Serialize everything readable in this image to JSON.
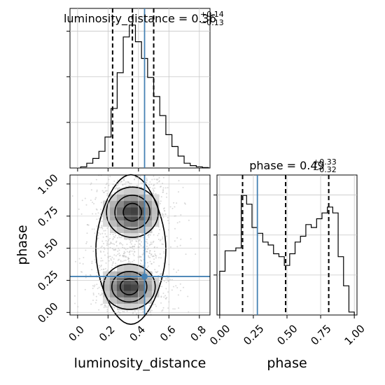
{
  "chart_data": {
    "type": "corner",
    "parameters": [
      "luminosity_distance",
      "phase"
    ],
    "truth": {
      "luminosity_distance": 0.44,
      "phase": 0.28
    },
    "grid": true,
    "panels": [
      {
        "id": "hist-luminosity_distance",
        "type": "histogram",
        "parameter": "luminosity_distance",
        "title_prefix": "luminosity_distance = 0.36",
        "title_plus": "+0.14",
        "title_minus": "−0.13",
        "bins": [
          0.02,
          0.06,
          0.1,
          0.14,
          0.18,
          0.22,
          0.26,
          0.3,
          0.34,
          0.38,
          0.42,
          0.46,
          0.5,
          0.54,
          0.58,
          0.62,
          0.66,
          0.7,
          0.74,
          0.78,
          0.82
        ],
        "counts": [
          0.5,
          2,
          4,
          7,
          13,
          25,
          40,
          55,
          60,
          53,
          46,
          38,
          30,
          22,
          14,
          9,
          5,
          2,
          1,
          0.5,
          0.2
        ],
        "quantiles": [
          0.23,
          0.36,
          0.5
        ],
        "xlim": [
          -0.05,
          0.87
        ],
        "ylim": [
          0,
          67
        ],
        "xticks": [
          0.0,
          0.2,
          0.4,
          0.6,
          0.8
        ]
      },
      {
        "id": "hist-phase",
        "type": "histogram",
        "parameter": "phase",
        "title_prefix": "phase = 0.49",
        "title_plus": "+0.33",
        "title_minus": "−0.32",
        "bins": [
          0.0,
          0.04,
          0.08,
          0.12,
          0.16,
          0.2,
          0.24,
          0.28,
          0.32,
          0.36,
          0.4,
          0.44,
          0.48,
          0.52,
          0.56,
          0.6,
          0.64,
          0.68,
          0.72,
          0.76,
          0.8,
          0.84,
          0.88,
          0.92,
          0.96
        ],
        "counts": [
          15,
          22,
          22,
          23,
          41,
          38,
          30,
          28,
          25,
          24,
          21,
          20,
          17,
          21,
          25,
          27,
          31,
          30,
          33,
          35,
          37,
          35,
          20,
          10,
          1
        ],
        "quantiles": [
          0.17,
          0.49,
          0.81
        ],
        "xlim": [
          -0.02,
          1.02
        ],
        "ylim": [
          0,
          48
        ],
        "xticks": [
          0.0,
          0.25,
          0.5,
          0.75,
          1.0
        ],
        "xtick_labels": [
          "0.00",
          "0.25",
          "0.50",
          "0.75",
          "1.00"
        ]
      },
      {
        "id": "scatter-phase-vs-luminosity_distance",
        "type": "2d-density",
        "x_parameter": "luminosity_distance",
        "y_parameter": "phase",
        "xlim": [
          -0.05,
          0.87
        ],
        "ylim": [
          -0.02,
          1.07
        ],
        "xticks": [
          0.0,
          0.2,
          0.4,
          0.6,
          0.8
        ],
        "yticks": [
          0.0,
          0.25,
          0.5,
          0.75,
          1.0
        ],
        "ytick_labels": [
          "0.00",
          "0.25",
          "0.50",
          "0.75",
          "1.00"
        ],
        "modes": [
          {
            "x": 0.36,
            "y": 0.78,
            "sx": 0.1,
            "sy": 0.1,
            "weight": 0.5
          },
          {
            "x": 0.34,
            "y": 0.2,
            "sx": 0.1,
            "sy": 0.09,
            "weight": 0.5
          }
        ]
      }
    ],
    "xlabels": [
      "luminosity_distance",
      "phase"
    ],
    "ylabel": "phase"
  }
}
